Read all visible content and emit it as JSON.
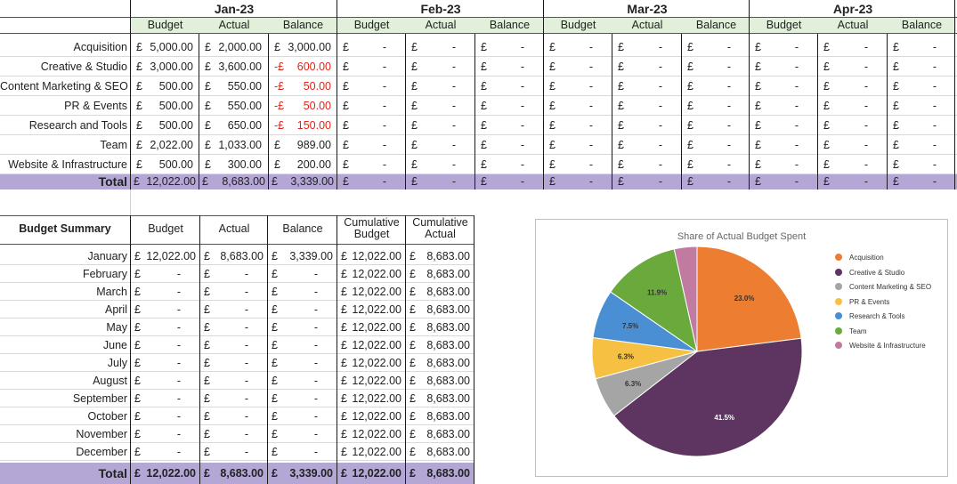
{
  "months": [
    "Jan-23",
    "Feb-23",
    "Mar-23",
    "Apr-23"
  ],
  "subheaders": [
    "Budget",
    "Actual",
    "Balance"
  ],
  "currency": "£",
  "dash": "-",
  "categories": [
    {
      "name": "Acquisition",
      "budget": "5,000.00",
      "actual": "2,000.00",
      "balance": "3,000.00",
      "neg": false
    },
    {
      "name": "Creative & Studio",
      "budget": "3,000.00",
      "actual": "3,600.00",
      "balance": "600.00",
      "neg": true
    },
    {
      "name": "Content Marketing & SEO",
      "budget": "500.00",
      "actual": "550.00",
      "balance": "50.00",
      "neg": true
    },
    {
      "name": "PR & Events",
      "budget": "500.00",
      "actual": "550.00",
      "balance": "50.00",
      "neg": true
    },
    {
      "name": "Research and Tools",
      "budget": "500.00",
      "actual": "650.00",
      "balance": "150.00",
      "neg": true
    },
    {
      "name": "Team",
      "budget": "2,022.00",
      "actual": "1,033.00",
      "balance": "989.00",
      "neg": false
    },
    {
      "name": "Website & Infrastructure",
      "budget": "500.00",
      "actual": "300.00",
      "balance": "200.00",
      "neg": false
    }
  ],
  "total": {
    "label": "Total",
    "budget": "12,022.00",
    "actual": "8,683.00",
    "balance": "3,339.00"
  },
  "summary": {
    "title": "Budget Summary",
    "headers": [
      "Budget",
      "Actual",
      "Balance",
      "Cumulative Budget",
      "Cumulative Actual"
    ],
    "rows": [
      {
        "month": "January",
        "budget": "12,022.00",
        "actual": "8,683.00",
        "balance": "3,339.00",
        "cum_budget": "12,022.00",
        "cum_actual": "8,683.00"
      },
      {
        "month": "February",
        "budget": "-",
        "actual": "-",
        "balance": "-",
        "cum_budget": "12,022.00",
        "cum_actual": "8,683.00"
      },
      {
        "month": "March",
        "budget": "-",
        "actual": "-",
        "balance": "-",
        "cum_budget": "12,022.00",
        "cum_actual": "8,683.00"
      },
      {
        "month": "April",
        "budget": "-",
        "actual": "-",
        "balance": "-",
        "cum_budget": "12,022.00",
        "cum_actual": "8,683.00"
      },
      {
        "month": "May",
        "budget": "-",
        "actual": "-",
        "balance": "-",
        "cum_budget": "12,022.00",
        "cum_actual": "8,683.00"
      },
      {
        "month": "June",
        "budget": "-",
        "actual": "-",
        "balance": "-",
        "cum_budget": "12,022.00",
        "cum_actual": "8,683.00"
      },
      {
        "month": "July",
        "budget": "-",
        "actual": "-",
        "balance": "-",
        "cum_budget": "12,022.00",
        "cum_actual": "8,683.00"
      },
      {
        "month": "August",
        "budget": "-",
        "actual": "-",
        "balance": "-",
        "cum_budget": "12,022.00",
        "cum_actual": "8,683.00"
      },
      {
        "month": "September",
        "budget": "-",
        "actual": "-",
        "balance": "-",
        "cum_budget": "12,022.00",
        "cum_actual": "8,683.00"
      },
      {
        "month": "October",
        "budget": "-",
        "actual": "-",
        "balance": "-",
        "cum_budget": "12,022.00",
        "cum_actual": "8,683.00"
      },
      {
        "month": "November",
        "budget": "-",
        "actual": "-",
        "balance": "-",
        "cum_budget": "12,022.00",
        "cum_actual": "8,683.00"
      },
      {
        "month": "December",
        "budget": "-",
        "actual": "-",
        "balance": "-",
        "cum_budget": "12,022.00",
        "cum_actual": "8,683.00"
      }
    ],
    "total": {
      "label": "Total",
      "budget": "12,022.00",
      "actual": "8,683.00",
      "balance": "3,339.00",
      "cum_budget": "12,022.00",
      "cum_actual": "8,683.00"
    }
  },
  "colors": {
    "subheader_bg": "#e2efda",
    "total_band": "#b4a7d6",
    "negative": "#e0241a"
  },
  "chart_data": {
    "type": "pie",
    "title": "Share of Actual Budget Spent",
    "labels": [
      "Acquisition",
      "Creative & Studio",
      "Content Marketing & SEO",
      "PR & Events",
      "Research & Tools",
      "Team",
      "Website & Infrastructure"
    ],
    "values": [
      23.0,
      41.5,
      6.3,
      6.3,
      7.5,
      11.9,
      3.5
    ],
    "value_labels": [
      "23.0%",
      "41.5%",
      "6.3%",
      "6.3%",
      "7.5%",
      "11.9%",
      ""
    ],
    "colors": [
      "#ed7d31",
      "#5e3560",
      "#a5a5a5",
      "#f6c142",
      "#4a8fd4",
      "#6aaa3c",
      "#c27ba0"
    ],
    "legend_position": "right"
  }
}
